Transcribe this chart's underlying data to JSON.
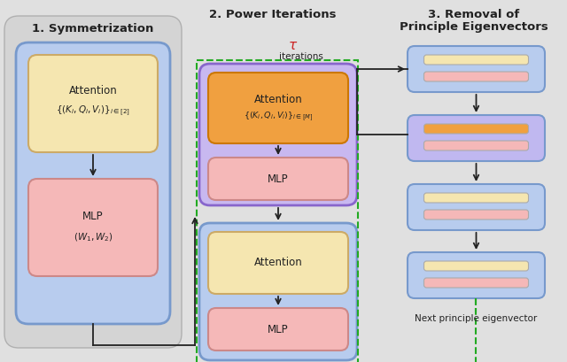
{
  "bg_color": "#e0e0e0",
  "title1": "1. Symmetrization",
  "title2": "2. Power Iterations",
  "title3_line1": "3. Removal of",
  "title3_line2": "Principle Eigenvectors",
  "tau_text": "τ",
  "iterations_text": "iterations",
  "next_eigen": "Next principle eigenvector",
  "sec1_gray_bg": "#d0d0d0",
  "sec1_blue_box": "#b8ccee",
  "sec1_blue_edge": "#7799cc",
  "sec2_purple_box": "#c8b8f0",
  "sec2_purple_edge": "#8866cc",
  "sec2_blue_box": "#b8ccee",
  "sec2_blue_edge": "#7799cc",
  "attn_yellow": "#f5e6b0",
  "attn_yellow_edge": "#ccaa66",
  "attn_orange": "#f0a040",
  "attn_orange_edge": "#cc7700",
  "mlp_pink": "#f5b8b8",
  "mlp_pink_edge": "#cc8888",
  "sec3_blue_box": "#b8ccee",
  "sec3_purple_box": "#c0b8f0",
  "sec3_blue_edge": "#7799cc",
  "dashed_green": "#22aa22",
  "arrow_color": "#222222",
  "text_color": "#222222",
  "red_tau": "#cc2222"
}
